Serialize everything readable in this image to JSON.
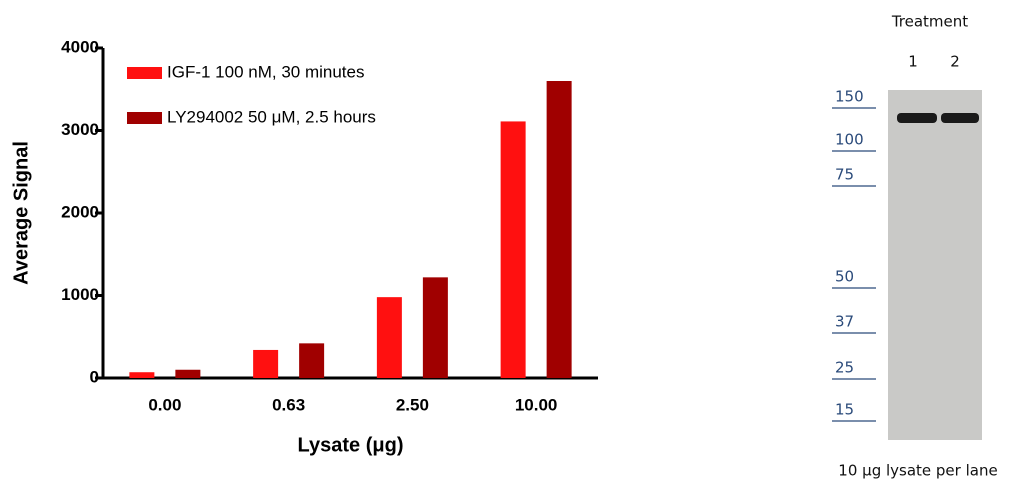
{
  "chart_data": {
    "type": "bar",
    "x_label": "Lysate (μg)",
    "y_label": "Average Signal",
    "categories": [
      "0.00",
      "0.63",
      "2.50",
      "10.00"
    ],
    "series": [
      {
        "name": "IGF-1 100 nM, 30 minutes",
        "color": "#ff1010",
        "values": [
          70,
          340,
          980,
          3110
        ]
      },
      {
        "name": "LY294002 50 μM, 2.5 hours",
        "color": "#a00000",
        "values": [
          100,
          420,
          1220,
          3600
        ]
      }
    ],
    "ylim": [
      0,
      4000
    ],
    "yticks": [
      0,
      1000,
      2000,
      3000,
      4000
    ],
    "grid": false,
    "legend": "upper left"
  },
  "blot": {
    "title": "Treatment",
    "lanes": [
      "1",
      "2"
    ],
    "markers": [
      "150",
      "100",
      "75",
      "50",
      "37",
      "25",
      "15"
    ],
    "caption": "10 µg lysate per lane"
  }
}
